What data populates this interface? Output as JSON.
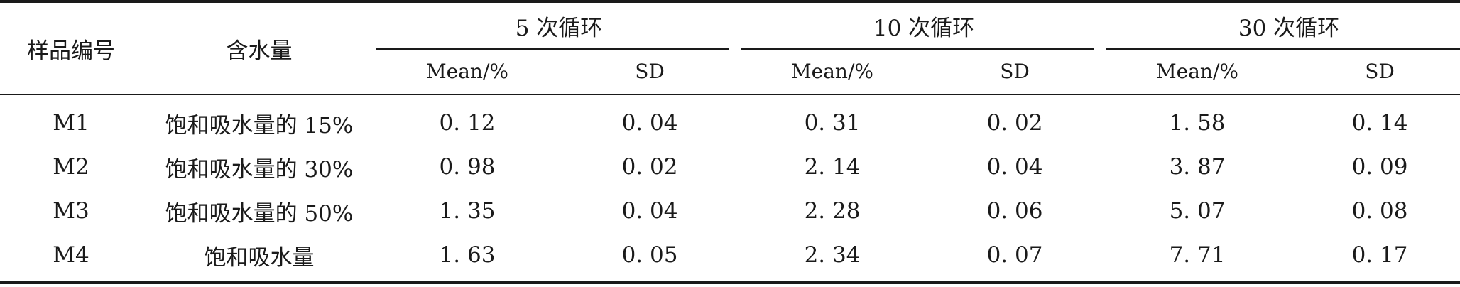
{
  "table": {
    "header": {
      "sample": "样品编号",
      "water": "含水量",
      "groups": [
        "5 次循环",
        "10 次循环",
        "30 次循环"
      ],
      "mean": "Mean/%",
      "sd": "SD"
    },
    "rows": [
      {
        "sample": "M1",
        "water": "饱和吸水量的 15%",
        "values": [
          "0. 12",
          "0. 04",
          "0. 31",
          "0. 02",
          "1. 58",
          "0. 14"
        ]
      },
      {
        "sample": "M2",
        "water": "饱和吸水量的 30%",
        "values": [
          "0. 98",
          "0. 02",
          "2. 14",
          "0. 04",
          "3. 87",
          "0. 09"
        ]
      },
      {
        "sample": "M3",
        "water": "饱和吸水量的 50%",
        "values": [
          "1. 35",
          "0. 04",
          "2. 28",
          "0. 06",
          "5. 07",
          "0. 08"
        ]
      },
      {
        "sample": "M4",
        "water": "饱和吸水量",
        "values": [
          "1. 63",
          "0. 05",
          "2. 34",
          "0. 07",
          "7. 71",
          "0. 17"
        ]
      }
    ]
  }
}
